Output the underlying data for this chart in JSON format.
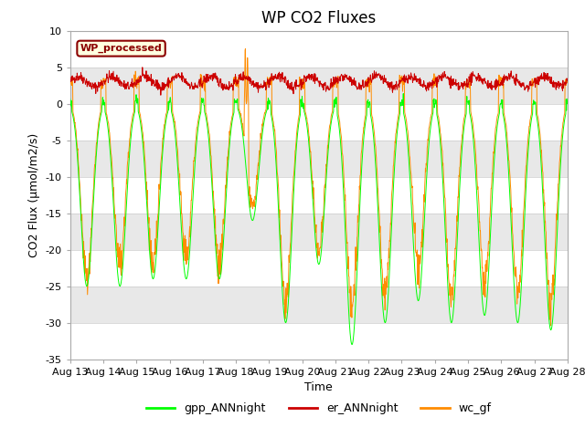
{
  "title": "WP CO2 Fluxes",
  "xlabel": "Time",
  "ylabel": "CO2 Flux (μmol/m2/s)",
  "ylim": [
    -35,
    10
  ],
  "n_days": 15,
  "points_per_day": 96,
  "gpp_color": "#00FF00",
  "er_color": "#CC0000",
  "wc_color": "#FF8C00",
  "gpp_label": "gpp_ANNnight",
  "er_label": "er_ANNnight",
  "wc_label": "wc_gf",
  "legend_box_label": "WP_processed",
  "legend_box_facecolor": "#FFFFE0",
  "legend_box_edgecolor": "#8B0000",
  "background_color": "#FFFFFF",
  "band_color": "#E8E8E8",
  "title_fontsize": 12,
  "axis_label_fontsize": 9,
  "tick_label_fontsize": 8,
  "x_tick_labels": [
    "Aug 13",
    "Aug 14",
    "Aug 15",
    "Aug 16",
    "Aug 17",
    "Aug 18",
    "Aug 19",
    "Aug 20",
    "Aug 21",
    "Aug 22",
    "Aug 23",
    "Aug 24",
    "Aug 25",
    "Aug 26",
    "Aug 27",
    "Aug 28"
  ]
}
